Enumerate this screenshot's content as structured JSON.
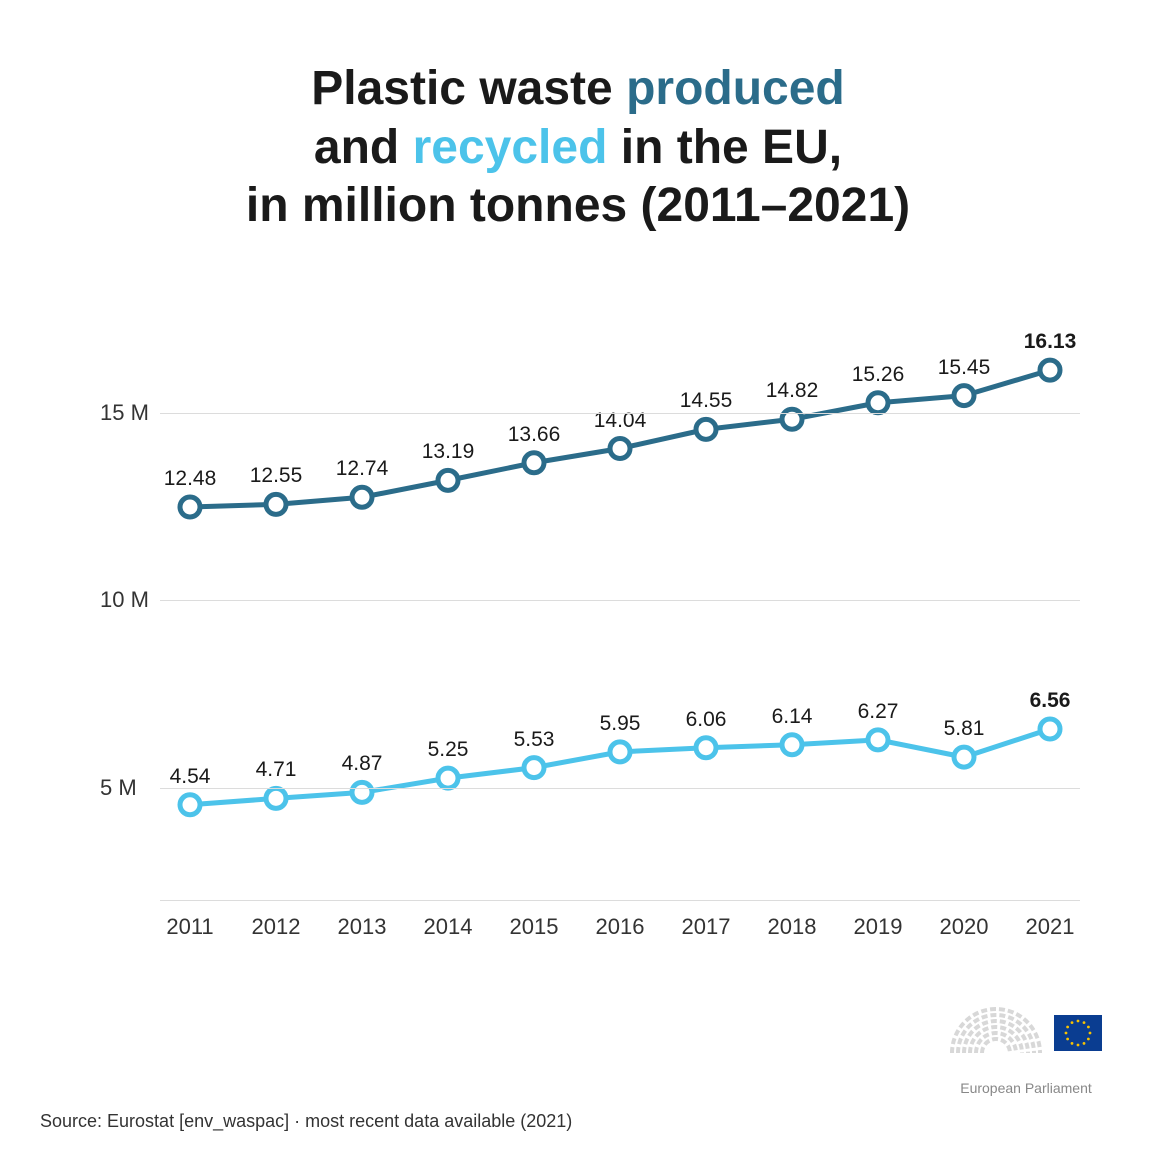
{
  "title": {
    "parts": [
      {
        "text": "Plastic waste ",
        "color": "#1a1a1a"
      },
      {
        "text": "produced",
        "color": "#2b6c8a"
      },
      {
        "text": "\nand ",
        "color": "#1a1a1a"
      },
      {
        "text": "recycled",
        "color": "#4cc3ea"
      },
      {
        "text": " in the EU,\nin million tonnes (2011–2021)",
        "color": "#1a1a1a"
      }
    ],
    "fontsize": 48,
    "fontweight": 700
  },
  "chart": {
    "type": "line",
    "years": [
      "2011",
      "2012",
      "2013",
      "2014",
      "2015",
      "2016",
      "2017",
      "2018",
      "2019",
      "2020",
      "2021"
    ],
    "ylim": [
      2,
      18
    ],
    "yticks": [
      {
        "v": 5,
        "label": "5 M"
      },
      {
        "v": 10,
        "label": "10 M"
      },
      {
        "v": 15,
        "label": "15 M"
      }
    ],
    "grid_color": "#dcdcdc",
    "background_color": "#ffffff",
    "tick_fontsize": 22,
    "label_fontsize": 21,
    "series": [
      {
        "name": "produced",
        "color": "#2b6c8a",
        "marker_fill": "#ffffff",
        "marker_stroke": "#2b6c8a",
        "marker_radius": 10,
        "marker_stroke_width": 5,
        "line_width": 5,
        "values": [
          12.48,
          12.55,
          12.74,
          13.19,
          13.66,
          14.04,
          14.55,
          14.82,
          15.26,
          15.45,
          16.13
        ],
        "bold_last": true
      },
      {
        "name": "recycled",
        "color": "#4cc3ea",
        "marker_fill": "#ffffff",
        "marker_stroke": "#4cc3ea",
        "marker_radius": 10,
        "marker_stroke_width": 5,
        "line_width": 5,
        "values": [
          4.54,
          4.71,
          4.87,
          5.25,
          5.53,
          5.95,
          6.06,
          6.14,
          6.27,
          5.81,
          6.56
        ],
        "bold_last": true
      }
    ]
  },
  "source": "Source: Eurostat [env_waspac] · most recent data available (2021)",
  "logo": {
    "caption": "European Parliament",
    "flag_bg": "#0a3d91",
    "flag_star": "#f8c300",
    "hemicycle_fill": "#d8d8d8"
  }
}
